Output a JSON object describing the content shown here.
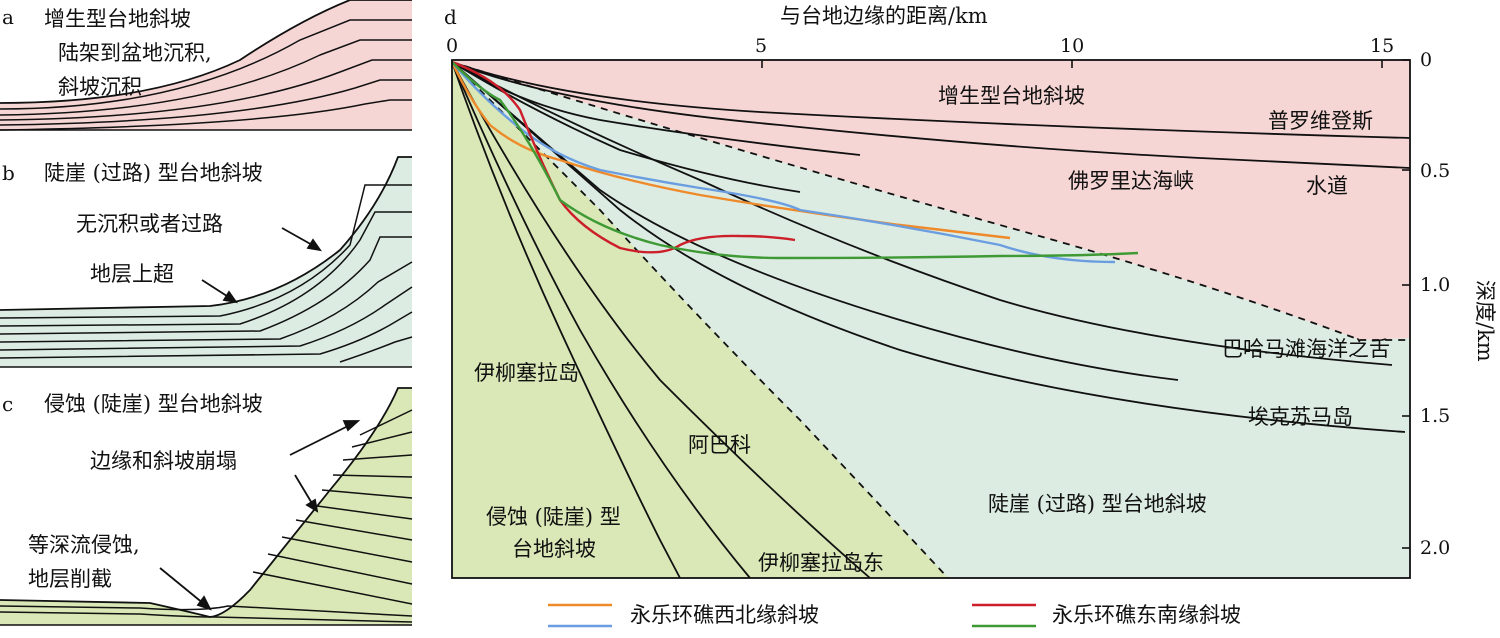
{
  "panel_a": {
    "letter": "a",
    "title": "增生型台地斜坡",
    "note_line1": "陆架到盆地沉积,",
    "note_line2": "斜坡沉积",
    "fill_color": "#f6d6d4"
  },
  "panel_b": {
    "letter": "b",
    "title": "陡崖 (过路) 型台地斜坡",
    "note_bypass": "无沉积或者过路",
    "note_onlap": "地层上超",
    "fill_color": "#dcece3"
  },
  "panel_c": {
    "letter": "c",
    "title": "侵蚀 (陡崖) 型台地斜坡",
    "note_collapse": "边缘和斜坡崩塌",
    "note_erosion_line1": "等深流侵蚀,",
    "note_erosion_line2": "地层削截",
    "fill_color": "#d9e8b6"
  },
  "panel_d": {
    "letter": "d",
    "x_axis_label": "与台地边缘的距离/km",
    "y_axis_label": "深度/km",
    "x_ticks": [
      "0",
      "5",
      "10",
      "15"
    ],
    "y_ticks": [
      "0",
      "0.5",
      "1.0",
      "1.5",
      "2.0"
    ],
    "zone_accretionary": "增生型台地斜坡",
    "zone_bypass": "陡崖 (过路) 型台地斜坡",
    "zone_erosional_line1": "侵蚀 (陡崖) 型",
    "zone_erosional_line2": "台地斜坡",
    "profiles": {
      "providence": "普罗维登斯",
      "channel": "水道",
      "florida": "佛罗里达海峡",
      "bahamas": "巴哈马滩海洋之舌",
      "exuma": "埃克苏马岛",
      "eleuthera": "伊柳塞拉岛",
      "abaco": "阿巴科",
      "eleuthera_east": "伊柳塞拉岛东"
    },
    "colors": {
      "accretionary": "#f6d6d4",
      "bypass": "#dcece3",
      "erosional": "#d9e8b6",
      "yongle_nw_orange": "#ee8a2a",
      "yongle_nw_blue": "#6a9ee0",
      "yongle_se_red": "#cc1f2a",
      "yongle_se_green": "#3f9a35"
    }
  },
  "legend": {
    "northwest": "永乐环礁西北缘斜坡",
    "southeast": "永乐环礁东南缘斜坡"
  }
}
